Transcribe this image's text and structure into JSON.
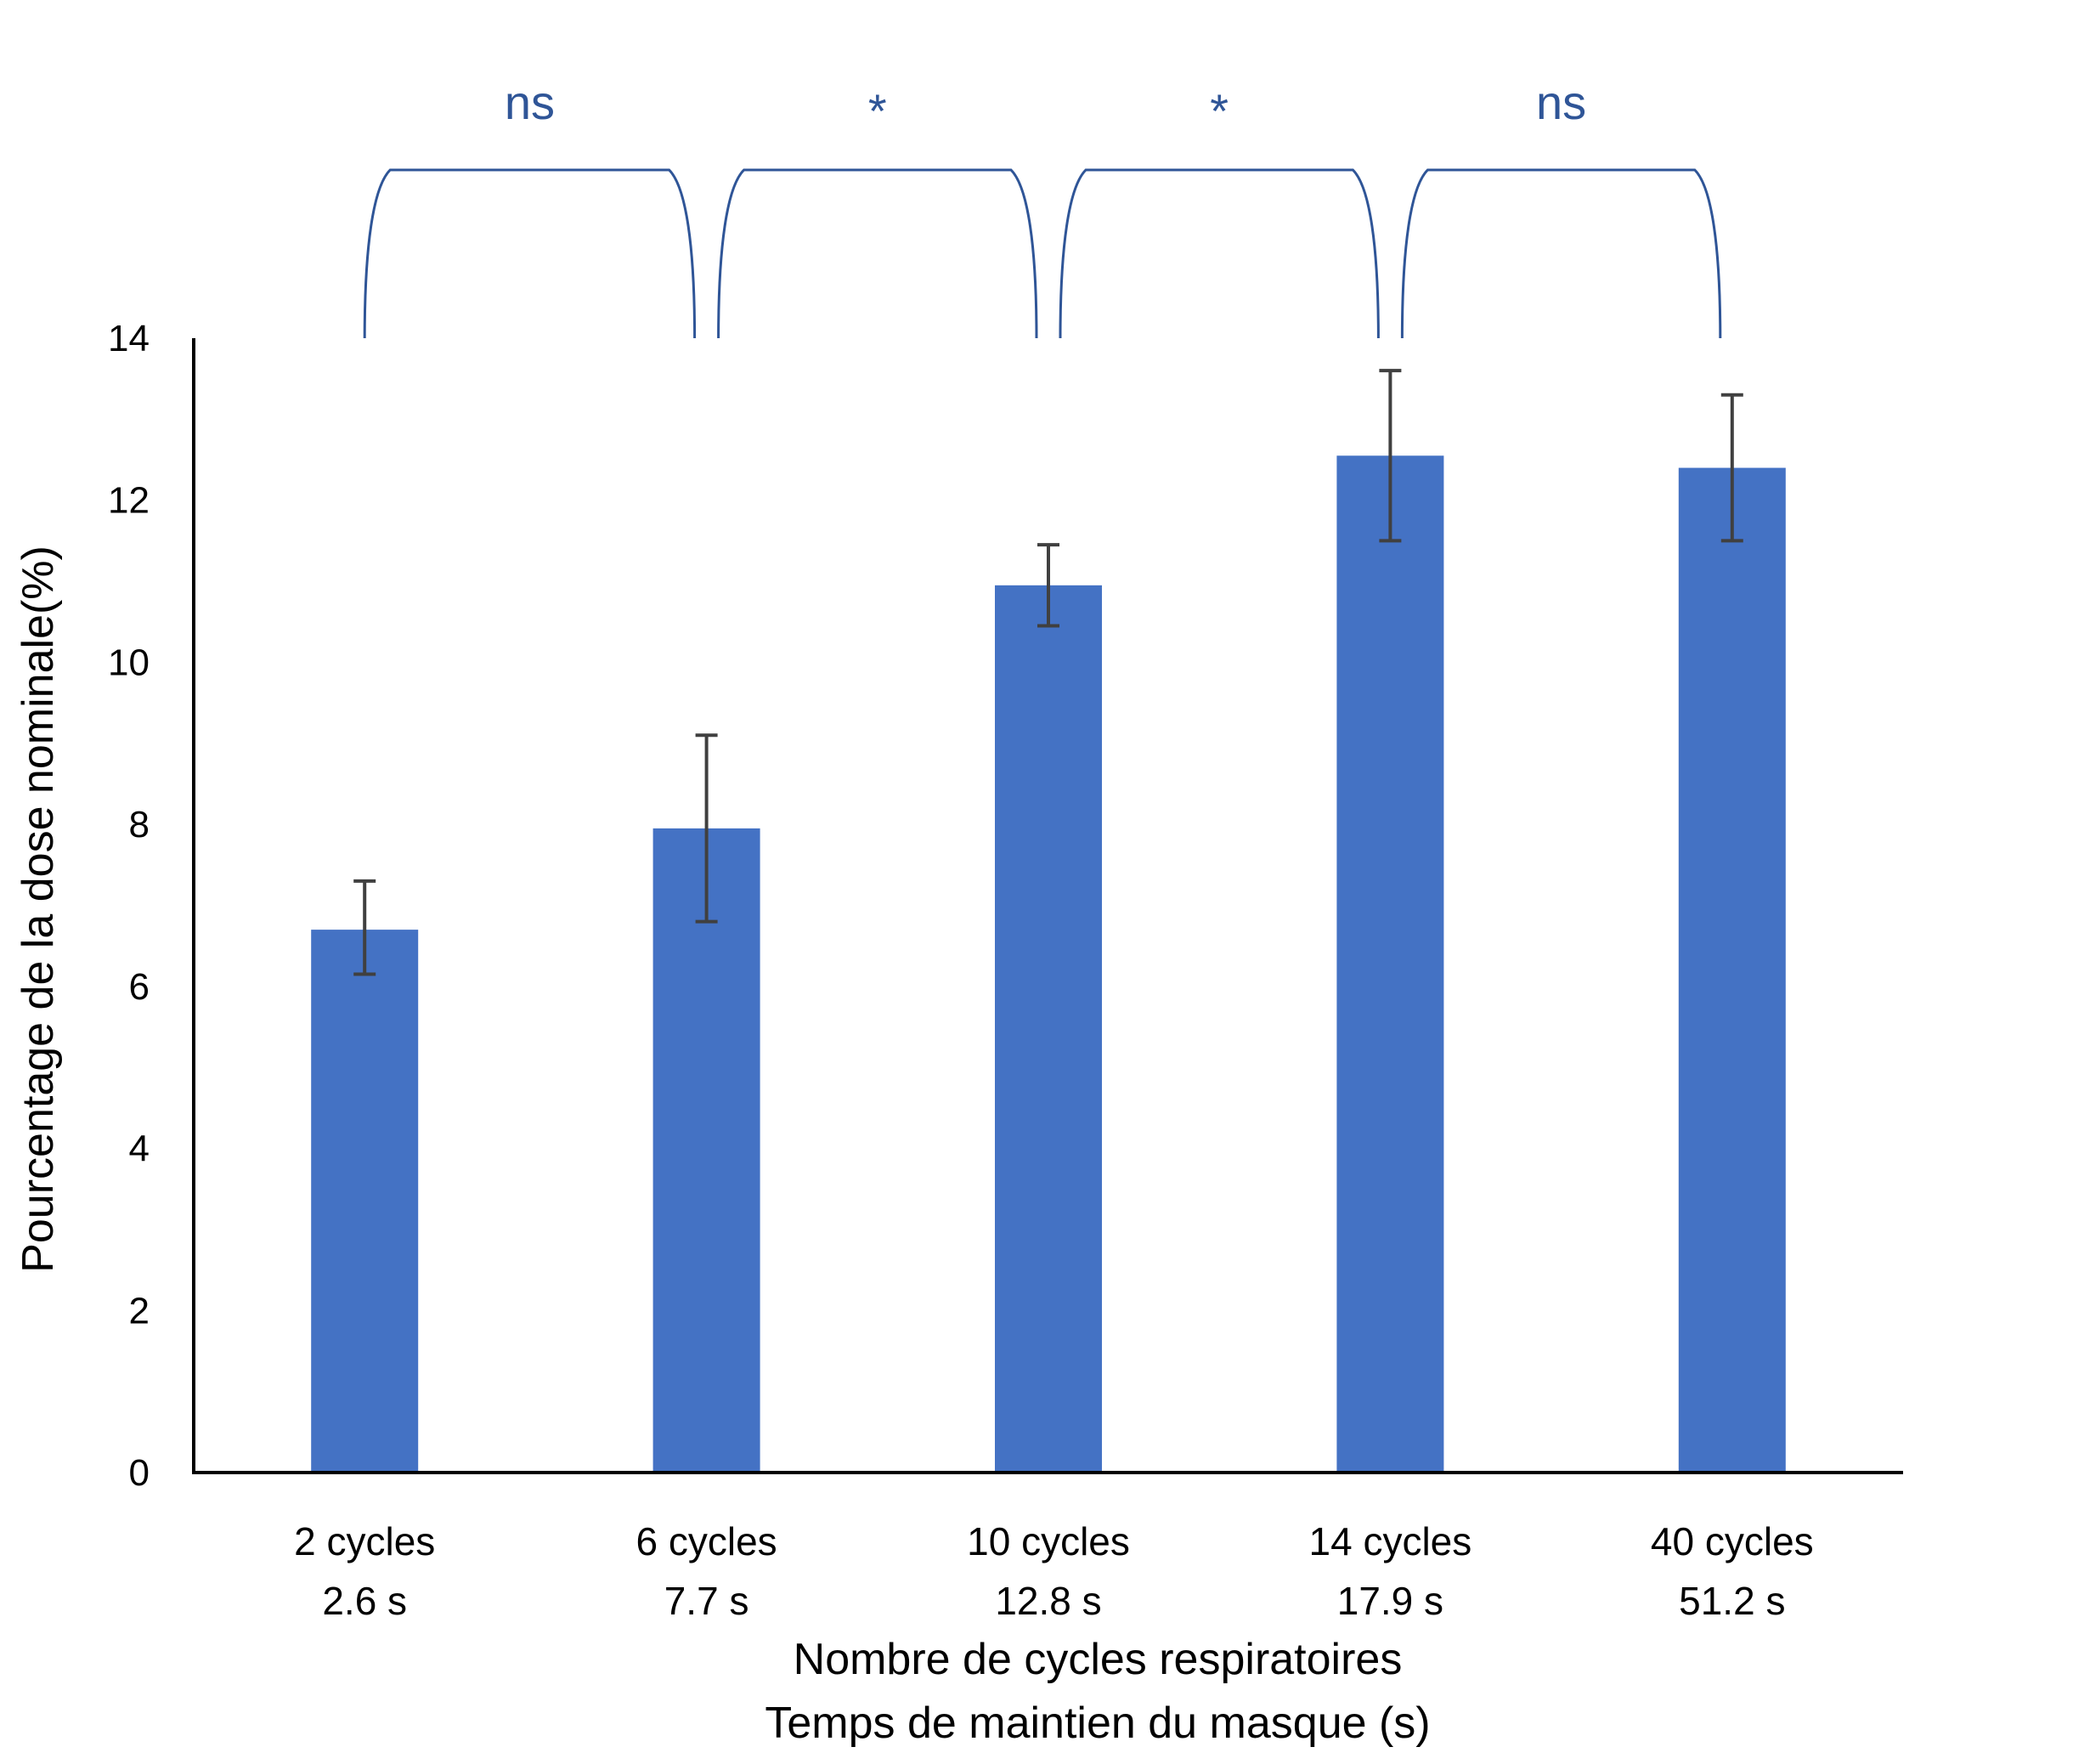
{
  "chart_data": {
    "type": "bar",
    "categories": [
      [
        "2 cycles",
        "2.6 s"
      ],
      [
        "6 cycles",
        "7.7 s"
      ],
      [
        "10 cycles",
        "12.8 s"
      ],
      [
        "14 cycles",
        "17.9 s"
      ],
      [
        "40 cycles",
        "51.2 s"
      ]
    ],
    "values": [
      6.7,
      7.95,
      10.95,
      12.55,
      12.4
    ],
    "error_low": [
      6.15,
      6.8,
      10.45,
      11.5,
      11.5
    ],
    "error_high": [
      7.3,
      9.1,
      11.45,
      13.6,
      13.3
    ],
    "ylim": [
      0,
      14
    ],
    "yticks": [
      0,
      2,
      4,
      6,
      8,
      10,
      12,
      14
    ],
    "ylabel": "Pourcentage de la dose nominale(%)",
    "xlabel": [
      "Nombre de cycles respiratoires",
      "Temps de maintien du masque (s)"
    ],
    "grid": false,
    "legend": "none",
    "bar_color": "#4472c4",
    "error_color": "#404040",
    "comparisons": [
      {
        "from": 0,
        "to": 1,
        "label": "ns"
      },
      {
        "from": 1,
        "to": 2,
        "label": "*"
      },
      {
        "from": 2,
        "to": 3,
        "label": "*"
      },
      {
        "from": 3,
        "to": 4,
        "label": "ns"
      }
    ],
    "comparison_color": "#2f5597"
  }
}
